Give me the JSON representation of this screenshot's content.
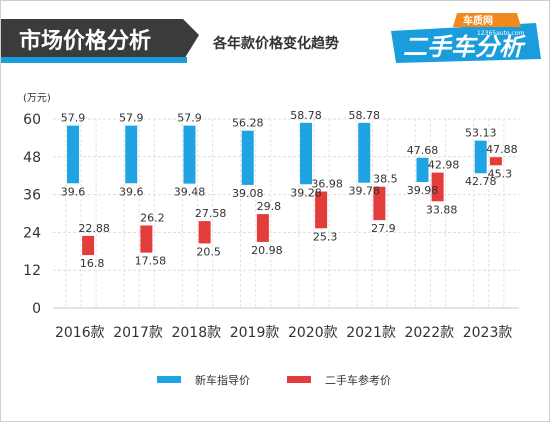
{
  "header": {
    "title": "市场价格分析",
    "subtitle": "各年款价格变化趋势",
    "logo_text": "二手车分析",
    "logo_small": "车质网",
    "logo_url": "12365auto.com"
  },
  "colors": {
    "header_dark": "#3b3b3b",
    "accent_blue": "#1a9ddc",
    "accent_orange": "#f08a1e",
    "guide_bar": "#1fa3e3",
    "used_bar": "#e23d3a"
  },
  "chart_data": {
    "type": "floating-bar",
    "unit_label": "(万元)",
    "categories": [
      "2016款",
      "2017款",
      "2018款",
      "2019款",
      "2020款",
      "2021款",
      "2022款",
      "2023款"
    ],
    "ylim": [
      0,
      60
    ],
    "yticks": [
      0,
      12,
      24,
      36,
      48,
      60
    ],
    "grid": true,
    "legend_position": "bottom",
    "series": [
      {
        "name": "新车指导价",
        "color": "#1fa3e3",
        "low": [
          39.6,
          39.6,
          39.48,
          39.08,
          39.28,
          39.78,
          39.98,
          42.78
        ],
        "high": [
          57.9,
          57.9,
          57.9,
          56.28,
          58.78,
          58.78,
          47.68,
          53.13
        ]
      },
      {
        "name": "二手车参考价",
        "color": "#e23d3a",
        "low": [
          16.8,
          17.58,
          20.5,
          20.98,
          25.3,
          27.9,
          33.88,
          45.3
        ],
        "high": [
          22.88,
          26.2,
          27.58,
          29.8,
          36.98,
          38.5,
          42.98,
          47.88
        ]
      }
    ]
  }
}
